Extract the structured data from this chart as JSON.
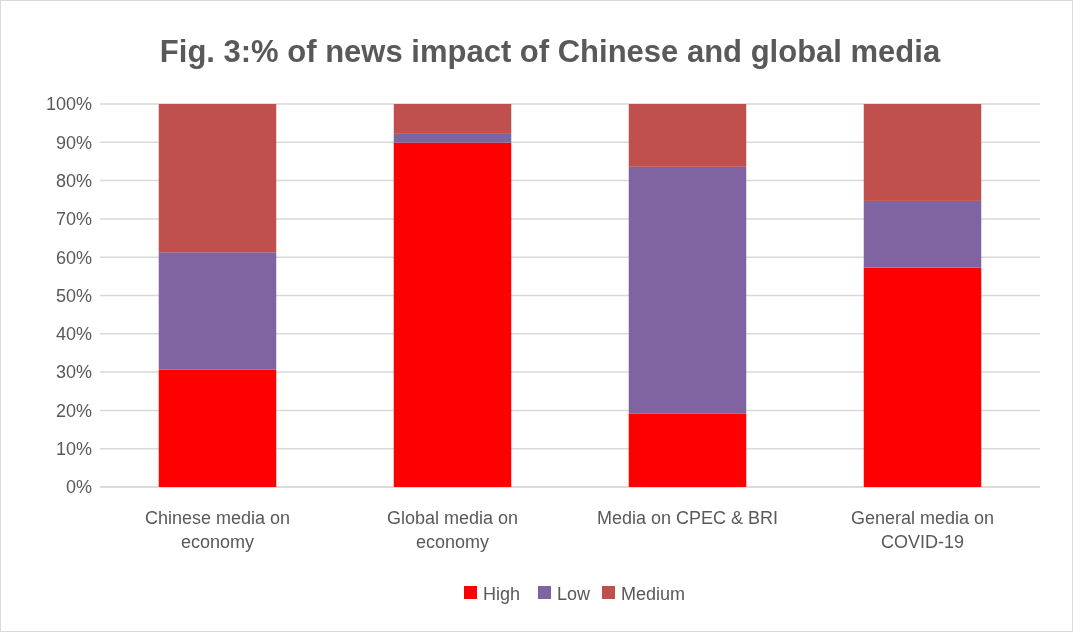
{
  "chart_data": {
    "type": "bar",
    "title": "Fig. 3:% of news impact of Chinese and global media",
    "categories": [
      "Chinese media on economy",
      "Global media on economy",
      "Media on CPEC & BRI",
      "General media on COVID-19"
    ],
    "stacked": true,
    "series": [
      {
        "name": "High",
        "color": "#ff0000",
        "values": [
          30.7,
          89.9,
          19.2,
          57.3
        ]
      },
      {
        "name": "Low",
        "color": "#8064a2",
        "values": [
          30.6,
          2.3,
          64.4,
          17.4
        ]
      },
      {
        "name": "Medium",
        "color": "#c0504d",
        "values": [
          38.7,
          7.8,
          16.4,
          25.3
        ]
      }
    ],
    "ylim": [
      0,
      100
    ],
    "yticks": [
      {
        "value": 0,
        "label": "0%"
      },
      {
        "value": 10,
        "label": "10%"
      },
      {
        "value": 20,
        "label": "20%"
      },
      {
        "value": 30,
        "label": "30%"
      },
      {
        "value": 40,
        "label": "40%"
      },
      {
        "value": 50,
        "label": "50%"
      },
      {
        "value": 60,
        "label": "60%"
      },
      {
        "value": 70,
        "label": "70%"
      },
      {
        "value": 80,
        "label": "80%"
      },
      {
        "value": 90,
        "label": "90%"
      },
      {
        "value": 100,
        "label": "100%"
      }
    ],
    "grid": "y",
    "legend": "bottom"
  }
}
